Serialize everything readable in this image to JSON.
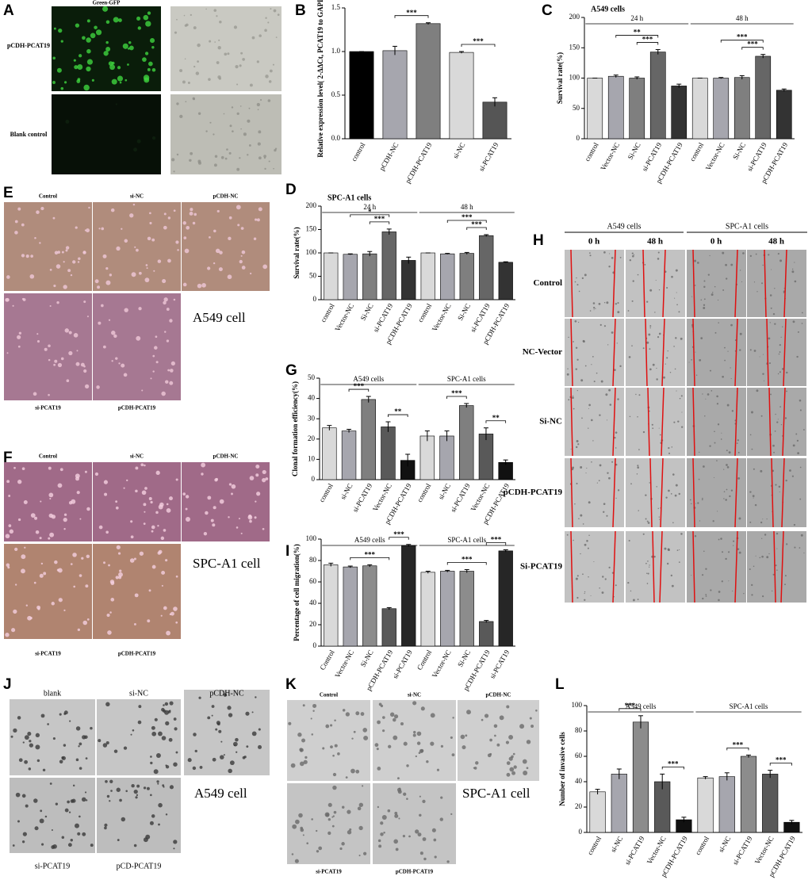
{
  "panel_letters": [
    "A",
    "B",
    "C",
    "D",
    "E",
    "F",
    "G",
    "H",
    "I",
    "J",
    "K",
    "L"
  ],
  "image_panels": [
    {
      "title": "Green-GFP",
      "rows": [
        "pCDH-PCAT19",
        "Blank control"
      ]
    },
    {
      "top": [
        "Control",
        "si-NC",
        "pCDH-NC"
      ],
      "bottom": [
        "si-PCAT19",
        "pCDH-PCAT19"
      ],
      "caption": "A549 cell"
    },
    {
      "top": [
        "Control",
        "si-NC",
        "pCDH-NC"
      ],
      "bottom": [
        "si-PCAT19",
        "pCDH-PCAT19"
      ],
      "caption": "SPC-A1 cell"
    },
    {
      "groups": [
        "A549 cells",
        "SPC-A1 cells"
      ],
      "times": [
        "0 h",
        "48 h",
        "0 h",
        "48 h"
      ],
      "rows": [
        "Control",
        "NC-Vector",
        "Si-NC",
        "pCDH-PCAT19",
        "Si-PCAT19"
      ]
    },
    {
      "top": [
        "blank",
        "si-NC",
        "pCDH-NC"
      ],
      "bottom": [
        "si-PCAT19",
        "pCD-PCAT19"
      ],
      "caption": "A549 cell"
    },
    {
      "top": [
        "Control",
        "si-NC",
        "pCDH-NC"
      ],
      "bottom": [
        "si-PCAT19",
        "pCDH-PCAT19"
      ],
      "caption": "SPC-A1 cell"
    }
  ],
  "chart_data": [
    {
      "type": "bar",
      "ylabel": "Relative expression level( 2-ΔΔCt, PCAT19 to GAPDH)",
      "categories": [
        "control",
        "pCDH-NC",
        "pCDH-PCAT19",
        "si-NC",
        "si-PCAT19"
      ],
      "values": [
        1.0,
        1.01,
        1.32,
        0.99,
        0.42
      ],
      "errors": [
        0,
        0.05,
        0.01,
        0.01,
        0.05
      ],
      "colors": [
        "#000000",
        "#a6a6ae",
        "#7f7f7f",
        "#d9d9d9",
        "#555555"
      ],
      "ylim": [
        0,
        1.5
      ],
      "yticks": [
        {
          "value": 0,
          "label": "0.0"
        },
        0.5,
        {
          "value": 1,
          "label": "1.0"
        },
        1.5
      ],
      "significance": [
        {
          "label": "***",
          "from": 1,
          "to": 2
        },
        {
          "label": "***",
          "from": 3,
          "to": 4
        }
      ]
    },
    {
      "type": "bar",
      "title": "A549 cells",
      "ylabel": "Survival rate(%)",
      "categories": [
        "control",
        "Vector-NC",
        "Si-NC",
        "si-PCAT19",
        "pCDH-PCAT19",
        "control",
        "Vector-NC",
        "Si-NC",
        "si-PCAT19",
        "pCDH-PCAT19"
      ],
      "values": [
        100,
        103,
        100,
        143,
        87,
        100,
        100,
        101,
        136,
        80
      ],
      "errors": [
        0,
        2,
        2,
        4,
        3,
        0,
        1,
        3,
        3,
        2
      ],
      "colors": [
        "#d9d9d9",
        "#a6a6ae",
        "#7f7f7f",
        "#666666",
        "#333333",
        "#d9d9d9",
        "#a6a6ae",
        "#7f7f7f",
        "#666666",
        "#333333"
      ],
      "ylim": [
        0,
        200
      ],
      "yticks": [
        0,
        50,
        100,
        150,
        200
      ],
      "groups": [
        {
          "label": "24 h",
          "from": 0,
          "to": 4
        },
        {
          "label": "48 h",
          "from": 5,
          "to": 9
        }
      ],
      "significance": [
        {
          "label": "***",
          "from": 2,
          "to": 3
        },
        {
          "label": "**",
          "from": 1,
          "to": 3
        },
        {
          "label": "***",
          "from": 7,
          "to": 8
        },
        {
          "label": "***",
          "from": 6,
          "to": 8
        }
      ]
    },
    {
      "type": "bar",
      "title": "SPC-A1 cells",
      "ylabel": "Survival rate(%)",
      "categories": [
        "control",
        "Vector-NC",
        "Si-NC",
        "si-PCAT19",
        "pCDH-PCAT19",
        "control",
        "Vector-NC",
        "Si-NC",
        "si-PCAT19",
        "pCDH-PCAT19"
      ],
      "values": [
        100,
        97,
        98,
        145,
        84,
        100,
        98,
        99,
        137,
        80
      ],
      "errors": [
        0,
        1,
        5,
        6,
        7,
        0,
        1,
        2,
        2,
        1
      ],
      "colors": [
        "#d9d9d9",
        "#a6a6ae",
        "#7f7f7f",
        "#666666",
        "#333333",
        "#d9d9d9",
        "#a6a6ae",
        "#7f7f7f",
        "#666666",
        "#333333"
      ],
      "ylim": [
        0,
        200
      ],
      "yticks": [
        0,
        50,
        100,
        150,
        200
      ],
      "groups": [
        {
          "label": "24 h",
          "from": 0,
          "to": 4
        },
        {
          "label": "48 h",
          "from": 5,
          "to": 9
        }
      ],
      "significance": [
        {
          "label": "***",
          "from": 2,
          "to": 3
        },
        {
          "label": "*",
          "from": 1,
          "to": 3
        },
        {
          "label": "***",
          "from": 7,
          "to": 8
        },
        {
          "label": "***",
          "from": 6,
          "to": 8
        }
      ]
    },
    {
      "type": "bar",
      "ylabel": "Clonal formation efficiency(%)",
      "categories": [
        "control",
        "si-NC",
        "si-PCAT19",
        "Vector-NC",
        "pCDH-PCAT19",
        "control",
        "si-NC",
        "si-PCAT19",
        "Vector-NC",
        "pCDH-PCAT19"
      ],
      "values": [
        25.5,
        24,
        39.5,
        26,
        9.5,
        21.5,
        21.5,
        36.5,
        22.5,
        8.5
      ],
      "errors": [
        1.2,
        0.8,
        1.5,
        2.5,
        3,
        2.5,
        2.5,
        1,
        3,
        1.2
      ],
      "colors": [
        "#d9d9d9",
        "#a6a6ae",
        "#7f7f7f",
        "#595959",
        "#111111",
        "#d9d9d9",
        "#a6a6ae",
        "#7f7f7f",
        "#595959",
        "#111111"
      ],
      "ylim": [
        0,
        50
      ],
      "yticks": [
        0,
        10,
        20,
        30,
        40,
        50
      ],
      "groups": [
        {
          "label": "A549 cells",
          "from": 0,
          "to": 4
        },
        {
          "label": "SPC-A1 cells",
          "from": 5,
          "to": 9
        }
      ],
      "significance": [
        {
          "label": "***",
          "from": 1,
          "to": 2
        },
        {
          "label": "**",
          "from": 3,
          "to": 4
        },
        {
          "label": "***",
          "from": 6,
          "to": 7
        },
        {
          "label": "**",
          "from": 8,
          "to": 9
        }
      ]
    },
    {
      "type": "bar",
      "ylabel": "Percentage of cell migration(%)",
      "categories": [
        "Control",
        "Vector-NC",
        "Si-NC",
        "pCDH-PCAT19",
        "si-PCAT19",
        "Control",
        "Vector-NC",
        "Si-NC",
        "pCDH-PCAT19",
        "si-PCAT19"
      ],
      "values": [
        76,
        74,
        75,
        35,
        94,
        69,
        70,
        70,
        23,
        89
      ],
      "errors": [
        1.5,
        0.8,
        1,
        1,
        1,
        1,
        0.8,
        1.5,
        1,
        1
      ],
      "colors": [
        "#d9d9d9",
        "#a6a6ae",
        "#8c8c8c",
        "#595959",
        "#262626",
        "#d9d9d9",
        "#a6a6ae",
        "#8c8c8c",
        "#595959",
        "#262626"
      ],
      "ylim": [
        0,
        100
      ],
      "yticks": [
        0,
        20,
        40,
        60,
        80,
        100
      ],
      "groups": [
        {
          "label": "A549 cells",
          "from": 0,
          "to": 4
        },
        {
          "label": "SPC-A1  cells",
          "from": 5,
          "to": 9
        }
      ],
      "significance": [
        {
          "label": "***",
          "from": 1,
          "to": 3
        },
        {
          "label": "***",
          "from": 3,
          "to": 4
        },
        {
          "label": "***",
          "from": 6,
          "to": 8
        },
        {
          "label": "***",
          "from": 8,
          "to": 9
        }
      ]
    },
    {
      "type": "bar",
      "ylabel": "Number of invasive cells",
      "categories": [
        "control",
        "si-NC",
        "si-PCAT19",
        "Vector-NC",
        "pCDH-PCAT19",
        "control",
        "si-NC",
        "si-PCAT19",
        "Vector-NC",
        "pCDH-PCAT19"
      ],
      "values": [
        32,
        46,
        87,
        40,
        10,
        43,
        44,
        60,
        46,
        8
      ],
      "errors": [
        2,
        4,
        5,
        6,
        2,
        1,
        3,
        1,
        3,
        1.5
      ],
      "colors": [
        "#d9d9d9",
        "#a6a6ae",
        "#8c8c8c",
        "#595959",
        "#111111",
        "#d9d9d9",
        "#a6a6ae",
        "#8c8c8c",
        "#595959",
        "#111111"
      ],
      "ylim": [
        0,
        100
      ],
      "yticks": [
        0,
        20,
        40,
        60,
        80,
        100
      ],
      "groups": [
        {
          "label": "A549 cells",
          "from": 0,
          "to": 4
        },
        {
          "label": "SPC-A1 cells",
          "from": 5,
          "to": 9
        }
      ],
      "significance": [
        {
          "label": "***",
          "from": 1,
          "to": 2
        },
        {
          "label": "***",
          "from": 3,
          "to": 4
        },
        {
          "label": "***",
          "from": 6,
          "to": 7
        },
        {
          "label": "***",
          "from": 8,
          "to": 9
        }
      ]
    }
  ]
}
